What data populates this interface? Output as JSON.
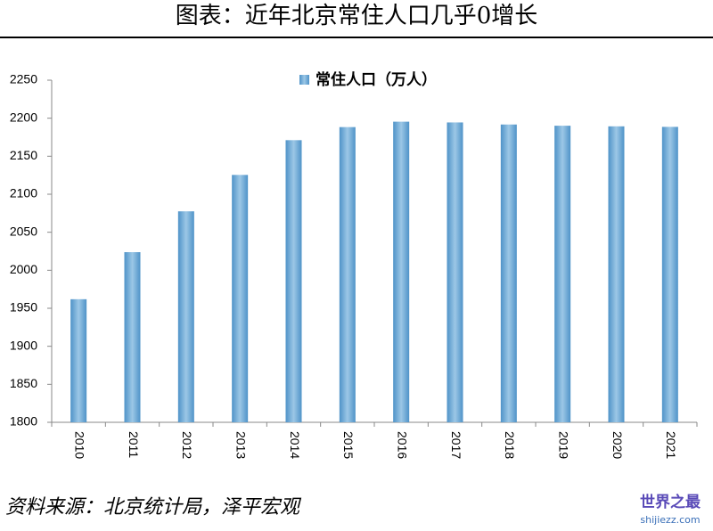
{
  "chart_data": {
    "type": "bar",
    "title": "图表：近年北京常住人口几乎0增长",
    "source": "资料来源：北京统计局，泽平宏观",
    "watermark": {
      "name": "世界之最",
      "url": "shijiezz.com"
    },
    "categories": [
      "2010",
      "2011",
      "2012",
      "2013",
      "2014",
      "2015",
      "2016",
      "2017",
      "2018",
      "2019",
      "2020",
      "2021"
    ],
    "series": [
      {
        "name": "常住人口（万人）",
        "color": "#4f93c8",
        "values": [
          1961.9,
          2023.8,
          2077.5,
          2125.4,
          2171.1,
          2188.3,
          2195.4,
          2194.4,
          2191.7,
          2190.1,
          2189.3,
          2188.6
        ]
      }
    ],
    "ylim": [
      1800,
      2250
    ],
    "yticks": [
      1800,
      1850,
      1900,
      1950,
      2000,
      2050,
      2100,
      2150,
      2200,
      2250
    ],
    "grid": false,
    "legend": "top"
  }
}
